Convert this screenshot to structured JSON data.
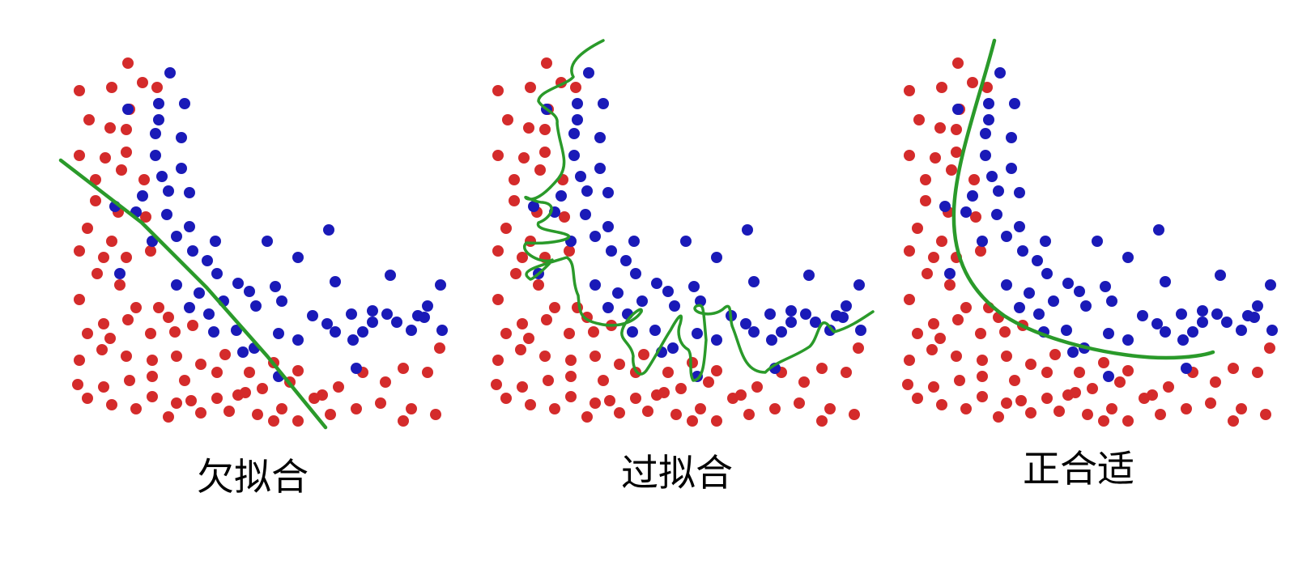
{
  "colors": {
    "class_a": "#d42b2b",
    "class_b": "#1a1ab8",
    "boundary": "#2a9a2a",
    "background": "#ffffff",
    "caption": "#000000"
  },
  "panels": [
    {
      "id": "underfit",
      "caption": "欠拟合",
      "boundary_style": "straight-line"
    },
    {
      "id": "overfit",
      "caption": "过拟合",
      "boundary_style": "wiggly-curve"
    },
    {
      "id": "goodfit",
      "caption": "正合适",
      "boundary_style": "smooth-curve"
    }
  ]
}
